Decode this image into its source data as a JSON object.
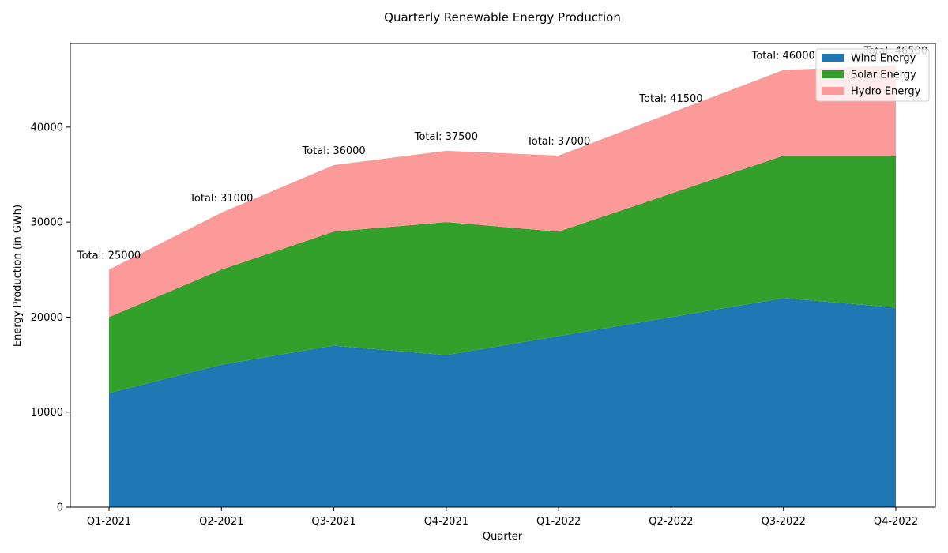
{
  "chart_data": {
    "type": "area",
    "stacked": true,
    "title": "Quarterly Renewable Energy Production",
    "xlabel": "Quarter",
    "ylabel": "Energy Production (in GWh)",
    "categories": [
      "Q1-2021",
      "Q2-2021",
      "Q3-2021",
      "Q4-2021",
      "Q1-2022",
      "Q2-2022",
      "Q3-2022",
      "Q4-2022"
    ],
    "ylim": [
      0,
      48800
    ],
    "yticks": [
      0,
      10000,
      20000,
      30000,
      40000
    ],
    "series": [
      {
        "name": "Wind Energy",
        "color": "#1f77b4",
        "values": [
          12000,
          15000,
          17000,
          16000,
          18000,
          20000,
          22000,
          21000
        ]
      },
      {
        "name": "Solar Energy",
        "color": "#33a02c",
        "values": [
          8000,
          10000,
          12000,
          14000,
          11000,
          13000,
          15000,
          16000
        ]
      },
      {
        "name": "Hydro Energy",
        "color": "#fb9a99",
        "values": [
          5000,
          6000,
          7000,
          7500,
          8000,
          8500,
          9000,
          9500
        ]
      }
    ],
    "annotations": [
      "Total: 25000",
      "Total: 31000",
      "Total: 36000",
      "Total: 37500",
      "Total: 37000",
      "Total: 41500",
      "Total: 46000",
      "Total: 46500"
    ],
    "totals": [
      25000,
      31000,
      36000,
      37500,
      37000,
      41500,
      46000,
      46500
    ],
    "legend": {
      "position": "top-right"
    },
    "grid": false
  }
}
